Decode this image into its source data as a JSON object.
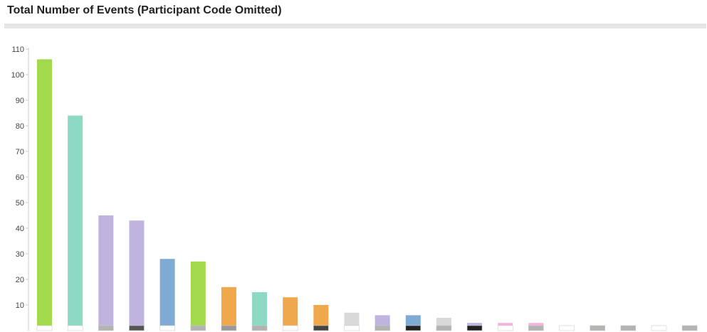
{
  "title": "Total Number of Events (Participant Code Omitted)",
  "chart_data": {
    "type": "bar",
    "title": "Total Number of Events (Participant Code Omitted)",
    "xlabel": "",
    "ylabel": "",
    "ylim": [
      0,
      110
    ],
    "yticks": [
      10,
      20,
      30,
      40,
      50,
      60,
      70,
      80,
      90,
      100,
      110
    ],
    "grid": false,
    "legend": "none",
    "values": [
      106,
      84,
      45,
      43,
      28,
      27,
      17,
      15,
      13,
      10,
      7,
      6,
      6,
      5,
      3,
      3,
      3,
      2,
      2,
      2,
      2,
      2,
      2
    ],
    "colors": [
      "#a3d94d",
      "#8dd9c3",
      "#bfb3df",
      "#bfb3df",
      "#7faad3",
      "#a3d94d",
      "#f0a84c",
      "#8dd9c3",
      "#f0a84c",
      "#f0a84c",
      "#d9d9d9",
      "#bfb3df",
      "#7faad3",
      "#d9d9d9",
      "#bfb3df",
      "#f5b3dc",
      "#f5b3dc",
      "#f2f28c",
      "#f0a84c",
      "#f2f28c",
      "#f2f28c",
      "#bfb3df",
      "#7faad3"
    ],
    "base_colors": [
      "#ffffff",
      "#ffffff",
      "#b3b3b3",
      "#555555",
      "#ffffff",
      "#b3b3b3",
      "#999999",
      "#b3b3b3",
      "#ffffff",
      "#444444",
      "#ffffff",
      "#b3b3b3",
      "#222222",
      "#b3b3b3",
      "#222222",
      "#ffffff",
      "#b3b3b3",
      "#ffffff",
      "#b3b3b3",
      "#b3b3b3",
      "#ffffff",
      "#b3b3b3",
      "#b3b3b3"
    ]
  }
}
